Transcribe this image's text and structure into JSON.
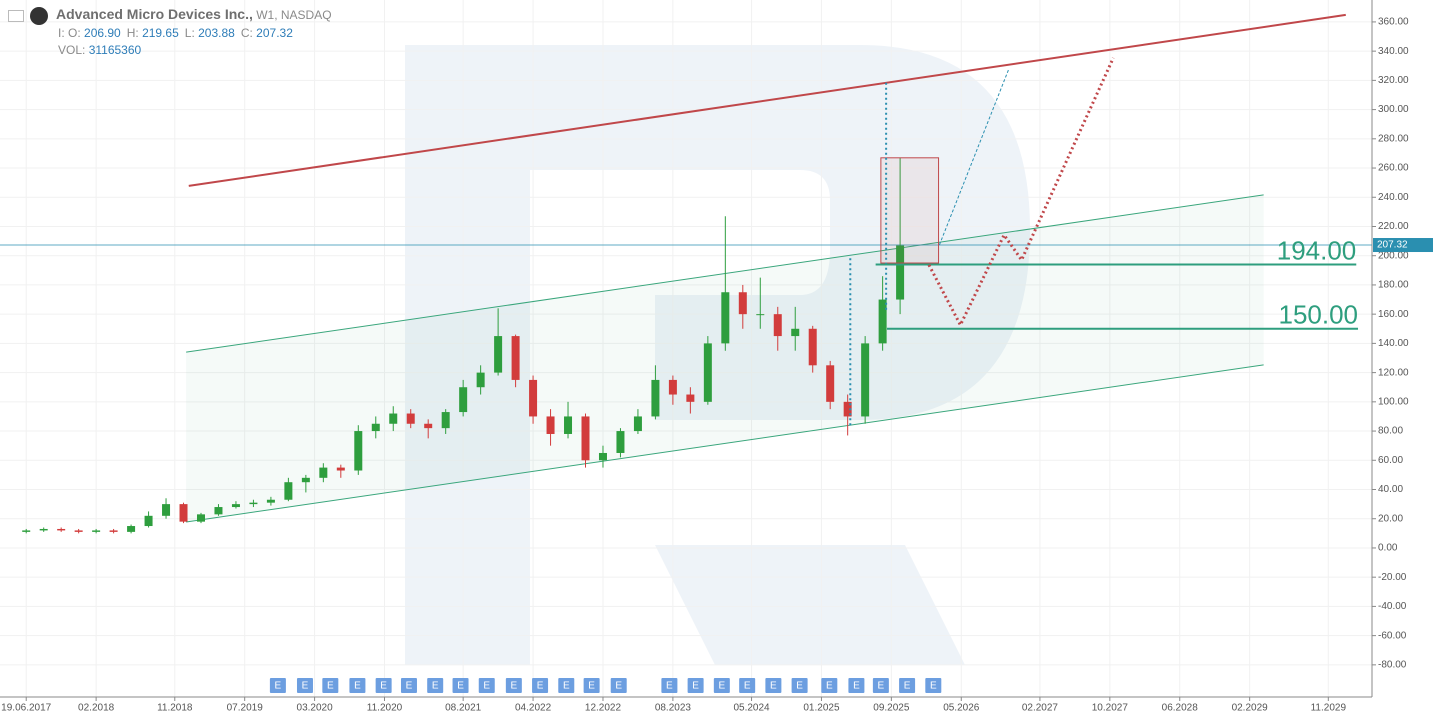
{
  "header": {
    "title": "Advanced Micro Devices Inc.,",
    "interval": "W1, NASDAQ",
    "quote": [
      {
        "label": "I: O:",
        "value": "206.90"
      },
      {
        "label": "H:",
        "value": "219.65"
      },
      {
        "label": "L:",
        "value": "203.88"
      },
      {
        "label": "C:",
        "value": "207.32"
      }
    ],
    "volume": {
      "label": "VOL:",
      "value": "31165360"
    }
  },
  "chart_data": {
    "type": "candlestick",
    "x": [
      0,
      2,
      4,
      6,
      8,
      10,
      12,
      14,
      16,
      18,
      20,
      22,
      24,
      26,
      28,
      30,
      32,
      34,
      36,
      38,
      40,
      42,
      44,
      46,
      48,
      50,
      52,
      54,
      56,
      58,
      60,
      62,
      64,
      66,
      68,
      70,
      72,
      74,
      76,
      78,
      80,
      82,
      84,
      86,
      88,
      90,
      92,
      94,
      96,
      98,
      100
    ],
    "open": [
      11,
      12,
      13,
      12,
      11,
      12,
      11,
      15,
      22,
      30,
      18,
      23,
      28,
      30,
      31,
      33,
      45,
      48,
      55,
      53,
      80,
      85,
      92,
      85,
      82,
      93,
      110,
      120,
      145,
      115,
      90,
      78,
      90,
      60,
      65,
      80,
      90,
      115,
      105,
      100,
      140,
      175,
      160,
      160,
      145,
      150,
      125,
      100,
      90,
      140,
      170
    ],
    "high": [
      13,
      14,
      14,
      13,
      13,
      13,
      16,
      25,
      34,
      31,
      24,
      30,
      32,
      33,
      35,
      48,
      50,
      58,
      57,
      84,
      90,
      97,
      95,
      88,
      95,
      115,
      125,
      164,
      146,
      118,
      95,
      100,
      92,
      70,
      82,
      95,
      125,
      118,
      110,
      145,
      227,
      180,
      185,
      165,
      165,
      152,
      128,
      105,
      145,
      186,
      267
    ],
    "low": [
      10,
      11,
      11,
      10,
      10,
      10,
      10,
      14,
      20,
      17,
      17,
      22,
      27,
      28,
      29,
      32,
      38,
      45,
      48,
      50,
      75,
      80,
      82,
      75,
      78,
      90,
      105,
      118,
      110,
      85,
      70,
      75,
      55,
      55,
      62,
      78,
      88,
      98,
      92,
      98,
      135,
      150,
      150,
      135,
      135,
      120,
      95,
      77,
      85,
      135,
      160
    ],
    "close": [
      12,
      13,
      12,
      11,
      12,
      11,
      15,
      22,
      30,
      18,
      23,
      28,
      30,
      31,
      33,
      45,
      48,
      55,
      53,
      80,
      85,
      92,
      85,
      82,
      93,
      110,
      120,
      145,
      115,
      90,
      78,
      90,
      60,
      65,
      80,
      90,
      115,
      105,
      100,
      140,
      175,
      160,
      160,
      145,
      150,
      125,
      100,
      90,
      140,
      170,
      207
    ],
    "up_color": "#2e9e3e",
    "down_color": "#d23c3c",
    "xlim": [
      -3,
      154
    ],
    "ylim": [
      -102,
      375
    ],
    "grid": true,
    "xticks": [
      {
        "value": 0,
        "label": "19.06.2017"
      },
      {
        "value": 8,
        "label": "02.2018"
      },
      {
        "value": 17,
        "label": "11.2018"
      },
      {
        "value": 25,
        "label": "07.2019"
      },
      {
        "value": 33,
        "label": "03.2020"
      },
      {
        "value": 41,
        "label": "11.2020"
      },
      {
        "value": 50,
        "label": "08.2021"
      },
      {
        "value": 58,
        "label": "04.2022"
      },
      {
        "value": 66,
        "label": "12.2022"
      },
      {
        "value": 74,
        "label": "08.2023"
      },
      {
        "value": 83,
        "label": "05.2024"
      },
      {
        "value": 91,
        "label": "01.2025"
      },
      {
        "value": 99,
        "label": "09.2025"
      },
      {
        "value": 107,
        "label": "05.2026"
      },
      {
        "value": 116,
        "label": "02.2027"
      },
      {
        "value": 124,
        "label": "10.2027"
      },
      {
        "value": 132,
        "label": "06.2028"
      },
      {
        "value": 140,
        "label": "02.2029"
      },
      {
        "value": 149,
        "label": "11.2029"
      }
    ],
    "yticks": [
      {
        "value": -80,
        "label": "-80.00"
      },
      {
        "value": -60,
        "label": "-60.00"
      },
      {
        "value": -40,
        "label": "-40.00"
      },
      {
        "value": -20,
        "label": "-20.00"
      },
      {
        "value": 0,
        "label": "0.00"
      },
      {
        "value": 20,
        "label": "20.00"
      },
      {
        "value": 40,
        "label": "40.00"
      },
      {
        "value": 60,
        "label": "60.00"
      },
      {
        "value": 80,
        "label": "80.00"
      },
      {
        "value": 100,
        "label": "100.00"
      },
      {
        "value": 120,
        "label": "120.00"
      },
      {
        "value": 140,
        "label": "140.00"
      },
      {
        "value": 160,
        "label": "160.00"
      },
      {
        "value": 180,
        "label": "180.00"
      },
      {
        "value": 200,
        "label": "200.00"
      },
      {
        "value": 220,
        "label": "220.00"
      },
      {
        "value": 240,
        "label": "240.00"
      },
      {
        "value": 260,
        "label": "260.00"
      },
      {
        "value": 280,
        "label": "280.00"
      },
      {
        "value": 300,
        "label": "300.00"
      },
      {
        "value": 320,
        "label": "320.00"
      },
      {
        "value": 340,
        "label": "340.00"
      },
      {
        "value": 360,
        "label": "360.00"
      }
    ],
    "last_price": 207.32,
    "last_price_color": "#2a8fb0",
    "earnings_label": "E",
    "earnings_x": [
      28.8,
      31.9,
      34.8,
      37.9,
      40.9,
      43.8,
      46.8,
      49.7,
      52.7,
      55.8,
      58.8,
      61.8,
      64.7,
      67.8,
      73.6,
      76.6,
      79.6,
      82.5,
      85.5,
      88.5,
      91.9,
      95.0,
      97.8,
      100.8,
      103.8
    ],
    "levels": [
      {
        "value": 194,
        "label": "194.00",
        "x": [
          97.2,
          152.2
        ]
      },
      {
        "value": 150,
        "label": "150.00",
        "x": [
          98.5,
          152.4
        ]
      }
    ],
    "channel_red": {
      "x": [
        18.6,
        151
      ],
      "y": [
        247.8,
        364.8
      ],
      "color": "#c0474a"
    },
    "channel_green_upper": {
      "x": [
        18.3,
        141.6
      ],
      "y": [
        134,
        241.6
      ],
      "color": "#3aa67c"
    },
    "channel_green_lower": {
      "x": [
        18.3,
        141.6
      ],
      "y": [
        17.8,
        125.3
      ],
      "color": "#3aa67c"
    },
    "forecast_path": {
      "x": [
        103.3,
        106.9,
        111.9,
        113.9,
        124.4
      ],
      "y": [
        193.7,
        152.6,
        214.2,
        197.1,
        335.4
      ],
      "color": "#c0474a"
    },
    "alt_path": {
      "x": [
        104.5,
        112.4
      ],
      "y": [
        207.4,
        327.2
      ],
      "color": "#2a8fb0"
    },
    "measure_1": {
      "x": [
        98.4,
        98.4
      ],
      "y": [
        163,
        319
      ]
    },
    "measure_2": {
      "x": [
        94.3,
        94.3
      ],
      "y": [
        84,
        200.5
      ]
    },
    "range_box": {
      "x": [
        97.8,
        104.4
      ],
      "y": [
        195,
        267
      ]
    }
  }
}
